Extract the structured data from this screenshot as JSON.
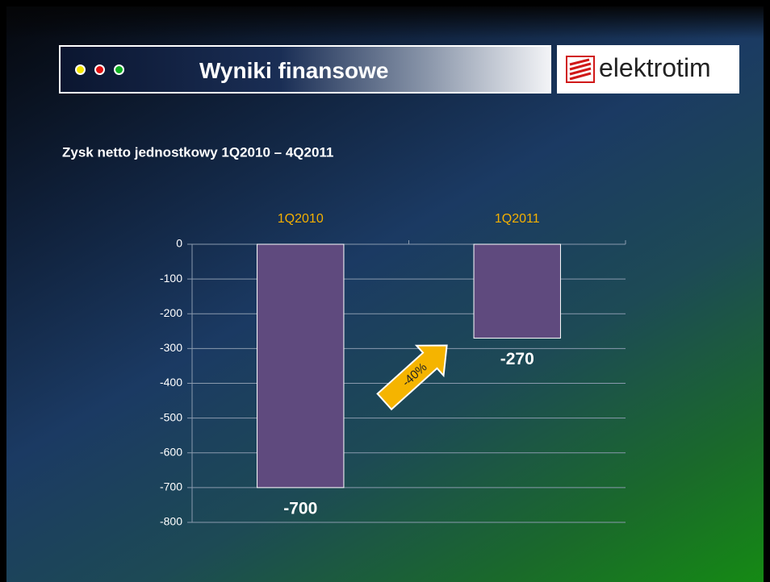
{
  "header": {
    "title": "Wyniki finansowe",
    "logo": "elektrotim"
  },
  "chart_data": {
    "type": "bar",
    "title": "Zysk netto jednostkowy 1Q2010 – 4Q2011",
    "categories": [
      "1Q2010",
      "1Q2011"
    ],
    "values": [
      -700,
      -270
    ],
    "color": "#5f4a7e",
    "ylim": [
      -800,
      0
    ],
    "yticks": [
      0,
      -100,
      -200,
      -300,
      -400,
      -500,
      -600,
      -700,
      -800
    ],
    "grid": true,
    "annotation": "-40%"
  }
}
